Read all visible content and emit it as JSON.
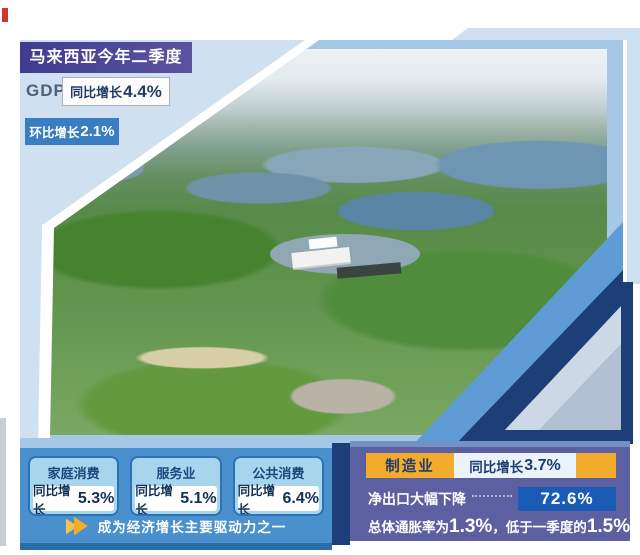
{
  "header": {
    "title": "马来西亚今年二季度",
    "gdp_label": "GDP",
    "gdp_prefix": "同比增长",
    "gdp_value": "4.4%",
    "qoq_prefix": "环比增长",
    "qoq_value": "2.1%"
  },
  "photo": {
    "name": "aerial-landscape-with-lakes-and-forest"
  },
  "consumption_panel": {
    "cards": [
      {
        "title": "家庭消费",
        "prefix": "同比增长",
        "value": "5.3%"
      },
      {
        "title": "服务业",
        "prefix": "同比增长",
        "value": "5.1%"
      },
      {
        "title": "公共消费",
        "prefix": "同比增长",
        "value": "6.4%"
      }
    ],
    "note": "成为经济增长主要驱动力之一"
  },
  "industry_panel": {
    "manufacturing_label": "制造业",
    "manufacturing_prefix": "同比增长",
    "manufacturing_value": "3.7%",
    "net_export_label": "净出口大幅下降",
    "net_export_value": "72.6%",
    "inflation_prefix": "总体通胀率为",
    "inflation_value": "1.3%",
    "inflation_mid": "，低于一季度的",
    "inflation_prev": "1.5%"
  },
  "colors": {
    "banner_indigo": "#3f3b8f",
    "panel_blue": "#4a90cc",
    "panel_purple": "#5c5fa0",
    "accent_orange": "#f2ab2c",
    "value_navy": "#122f55",
    "net_box_blue": "#1a5cb4"
  },
  "chart_data": {
    "type": "table",
    "title": "马来西亚今年二季度",
    "rows": [
      {
        "indicator": "GDP 同比增长",
        "value_pct": 4.4
      },
      {
        "indicator": "GDP 环比增长",
        "value_pct": 2.1
      },
      {
        "indicator": "家庭消费 同比增长",
        "value_pct": 5.3
      },
      {
        "indicator": "服务业 同比增长",
        "value_pct": 5.1
      },
      {
        "indicator": "公共消费 同比增长",
        "value_pct": 6.4
      },
      {
        "indicator": "制造业 同比增长",
        "value_pct": 3.7
      },
      {
        "indicator": "净出口大幅下降",
        "value_pct": 72.6
      },
      {
        "indicator": "总体通胀率（二季度）",
        "value_pct": 1.3
      },
      {
        "indicator": "总体通胀率（一季度）",
        "value_pct": 1.5
      }
    ]
  }
}
